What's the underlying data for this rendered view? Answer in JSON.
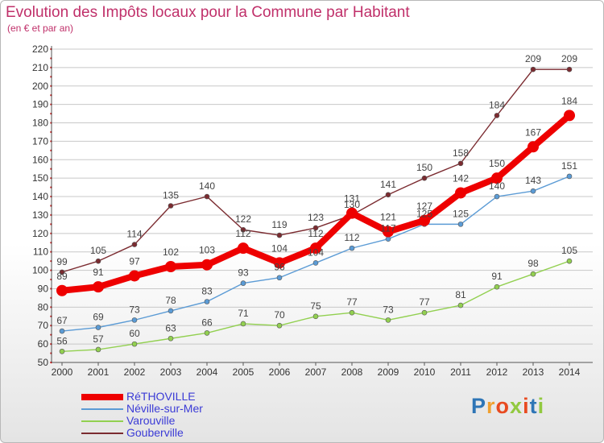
{
  "header": {
    "title": "Evolution des Impôts locaux pour la Commune par Habitant",
    "subtitle": "(en € et par an)"
  },
  "brand": {
    "logo_text": "Proxiti"
  },
  "colors": {
    "title": "#c0306a",
    "grid": "#c8c8c8",
    "axis_red_dots": "#cc0000"
  },
  "chart_data": {
    "type": "line",
    "title": "Evolution des Impôts locaux pour la Commune par Habitant",
    "subtitle": "(en € et par an)",
    "xlabel": "",
    "ylabel": "",
    "x": [
      "2000",
      "2001",
      "2002",
      "2003",
      "2004",
      "2005",
      "2006",
      "2007",
      "2008",
      "2009",
      "2010",
      "2011",
      "2012",
      "2013",
      "2014"
    ],
    "ylim": [
      50,
      220
    ],
    "yticks": [
      50,
      60,
      70,
      80,
      90,
      100,
      110,
      120,
      130,
      140,
      150,
      160,
      170,
      180,
      190,
      200,
      210,
      220
    ],
    "grid": true,
    "legend_position": "bottom-left",
    "series": [
      {
        "name": "RéTHOVILLE",
        "color": "#ee0000",
        "emphasis": true,
        "values": [
          89,
          91,
          97,
          102,
          103,
          112,
          104,
          112,
          131,
          121,
          127,
          142,
          150,
          167,
          184
        ]
      },
      {
        "name": "Néville-sur-Mer",
        "color": "#5b9bd5",
        "emphasis": false,
        "values": [
          67,
          69,
          73,
          78,
          83,
          93,
          96,
          104,
          112,
          117,
          125,
          125,
          140,
          143,
          151
        ]
      },
      {
        "name": "Varouville",
        "color": "#92d050",
        "emphasis": false,
        "values": [
          56,
          57,
          60,
          63,
          66,
          71,
          70,
          75,
          77,
          73,
          77,
          81,
          91,
          98,
          105
        ]
      },
      {
        "name": "Gouberville",
        "color": "#7b2b30",
        "emphasis": false,
        "values": [
          99,
          105,
          114,
          135,
          140,
          122,
          119,
          123,
          130,
          141,
          150,
          158,
          184,
          209,
          209
        ]
      }
    ]
  }
}
